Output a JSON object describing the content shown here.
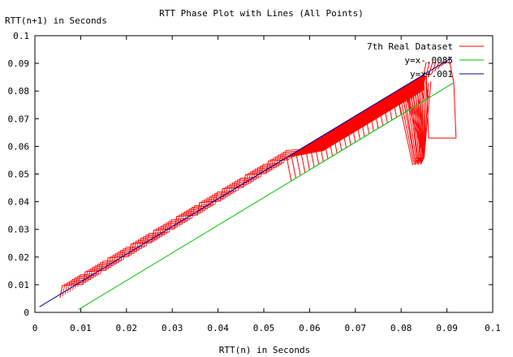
{
  "chart_data": {
    "type": "line",
    "title": "RTT Phase Plot with Lines (All Points)",
    "xlabel": "RTT(n) in Seconds",
    "ylabel": "RTT(n+1) in Seconds",
    "xlim": [
      0,
      0.1
    ],
    "ylim": [
      0,
      0.1
    ],
    "x_ticks": [
      "0",
      "0.01",
      "0.02",
      "0.03",
      "0.04",
      "0.05",
      "0.06",
      "0.07",
      "0.08",
      "0.09",
      "0.1"
    ],
    "y_ticks": [
      "0",
      "0.01",
      "0.02",
      "0.03",
      "0.04",
      "0.05",
      "0.06",
      "0.07",
      "0.08",
      "0.09",
      "0.1"
    ],
    "grid": false,
    "legend_position": "top-right",
    "series": [
      {
        "name": "7th Real Dataset",
        "color": "#ff0000",
        "style": "zigzag",
        "x": [
          0.0055,
          0.006,
          0.0105,
          0.011,
          0.0155,
          0.016,
          0.0205,
          0.021,
          0.0255,
          0.026,
          0.0305,
          0.031,
          0.0355,
          0.036,
          0.0405,
          0.041,
          0.0455,
          0.046,
          0.0505,
          0.051,
          0.0555
        ],
        "y": [
          0.0053,
          0.0097,
          0.0102,
          0.0147,
          0.0152,
          0.0197,
          0.0202,
          0.0247,
          0.0252,
          0.0297,
          0.0302,
          0.0347,
          0.0352,
          0.0397,
          0.0402,
          0.0447,
          0.0452,
          0.0497,
          0.0502,
          0.0547,
          0.0552
        ]
      },
      {
        "name": "y=x-.0085",
        "color": "#00c000",
        "x": [
          0.0095,
          0.0915
        ],
        "y": [
          0.001,
          0.083
        ]
      },
      {
        "name": "y=x+.001",
        "color": "#0000a0",
        "x": [
          0.001,
          0.091
        ],
        "y": [
          0.002,
          0.092
        ]
      }
    ],
    "dense_band": {
      "series": "7th Real Dataset",
      "x_range": [
        0.055,
        0.085
      ],
      "upper_line_offset": 0.001,
      "lower_line_offset": -0.0085,
      "outliers": [
        {
          "x": 0.0825,
          "y": 0.0535
        },
        {
          "x": 0.085,
          "y": 0.056
        },
        {
          "x": 0.086,
          "y": 0.063
        },
        {
          "x": 0.092,
          "y": 0.063
        },
        {
          "x": 0.0915,
          "y": 0.083
        },
        {
          "x": 0.0905,
          "y": 0.0915
        }
      ]
    }
  }
}
